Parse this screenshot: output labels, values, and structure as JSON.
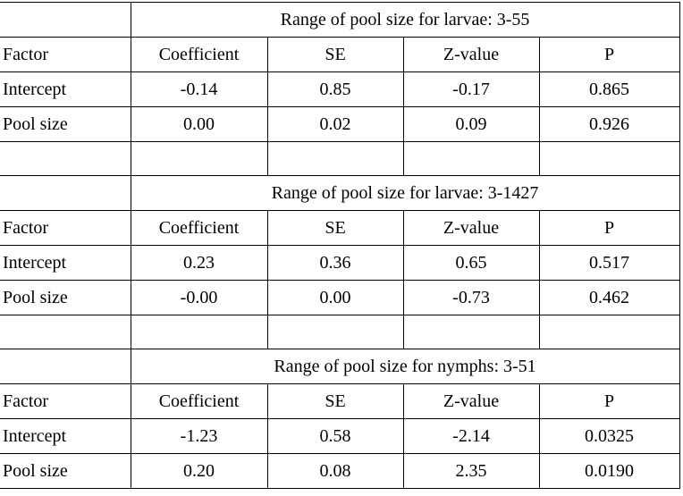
{
  "table": {
    "sections": [
      {
        "title": "Range of pool size for larvae: 3-55",
        "header": [
          "Factor",
          "Coefficient",
          "SE",
          "Z-value",
          "P"
        ],
        "rows": [
          [
            "Intercept",
            "-0.14",
            "0.85",
            "-0.17",
            "0.865"
          ],
          [
            "Pool size",
            "0.00",
            "0.02",
            "0.09",
            "0.926"
          ]
        ]
      },
      {
        "title": "Range of pool size for larvae: 3-1427",
        "header": [
          "Factor",
          "Coefficient",
          "SE",
          "Z-value",
          "P"
        ],
        "rows": [
          [
            "Intercept",
            "0.23",
            "0.36",
            "0.65",
            "0.517"
          ],
          [
            "Pool size",
            "-0.00",
            "0.00",
            "-0.73",
            "0.462"
          ]
        ]
      },
      {
        "title": "Range of pool size for nymphs: 3-51",
        "header": [
          "Factor",
          "Coefficient",
          "SE",
          "Z-value",
          "P"
        ],
        "rows": [
          [
            "Intercept",
            "-1.23",
            "0.58",
            "-2.14",
            "0.0325"
          ],
          [
            "Pool size",
            "0.20",
            "0.08",
            "2.35",
            "0.0190"
          ]
        ]
      }
    ]
  }
}
